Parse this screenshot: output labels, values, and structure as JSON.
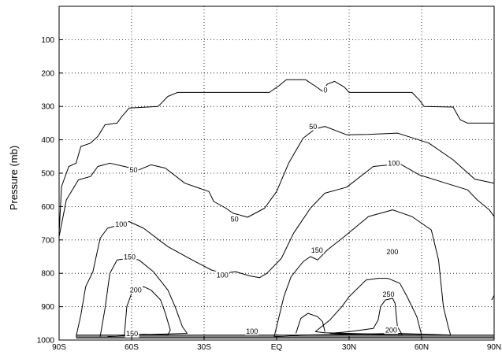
{
  "chart_data": {
    "type": "contour",
    "title": "",
    "xlabel": "",
    "ylabel": "Pressure (mb)",
    "x_axis": {
      "range": [
        -90,
        90
      ],
      "ticks": [
        -90,
        -60,
        -30,
        0,
        30,
        60,
        90
      ],
      "tick_labels": [
        "90S",
        "60S",
        "30S",
        "EQ",
        "30N",
        "60N",
        "90N"
      ]
    },
    "y_axis": {
      "range": [
        0,
        1000
      ],
      "inverted": true,
      "ticks": [
        100,
        200,
        300,
        400,
        500,
        600,
        700,
        800,
        900,
        1000
      ],
      "tick_labels": [
        "100",
        "200",
        "300",
        "400",
        "500",
        "600",
        "700",
        "800",
        "900",
        "1000"
      ]
    },
    "grid": "dotted",
    "contour_levels": [
      0,
      50,
      100,
      150,
      200,
      250
    ],
    "contours": [
      {
        "level": 0,
        "points": [
          [
            -90,
            680
          ],
          [
            -89,
            540
          ],
          [
            -86,
            480
          ],
          [
            -83,
            470
          ],
          [
            -81,
            420
          ],
          [
            -77,
            410
          ],
          [
            -74,
            390
          ],
          [
            -71,
            355
          ],
          [
            -66,
            350
          ],
          [
            -64,
            330
          ],
          [
            -61,
            305
          ],
          [
            -49,
            300
          ],
          [
            -45,
            270
          ],
          [
            -41,
            258
          ],
          [
            -3,
            258
          ],
          [
            1,
            238
          ],
          [
            4,
            220
          ],
          [
            12,
            220
          ],
          [
            17,
            244
          ],
          [
            19,
            255
          ],
          [
            21,
            233
          ],
          [
            24,
            225
          ],
          [
            28,
            242
          ],
          [
            30,
            258
          ],
          [
            56,
            258
          ],
          [
            59,
            280
          ],
          [
            61,
            300
          ],
          [
            73,
            302
          ],
          [
            76,
            340
          ],
          [
            79,
            350
          ],
          [
            90,
            350
          ]
        ]
      },
      {
        "level": 50,
        "points": [
          [
            -90,
            690
          ],
          [
            -87,
            580
          ],
          [
            -82,
            520
          ],
          [
            -77,
            510
          ],
          [
            -74,
            480
          ],
          [
            -69,
            470
          ],
          [
            -63,
            480
          ],
          [
            -57,
            490
          ],
          [
            -52,
            475
          ],
          [
            -46,
            485
          ],
          [
            -38,
            530
          ],
          [
            -32,
            545
          ],
          [
            -28,
            555
          ],
          [
            -26,
            585
          ],
          [
            -21,
            605
          ],
          [
            -18,
            620
          ],
          [
            -12,
            632
          ],
          [
            -5,
            605
          ],
          [
            0,
            555
          ],
          [
            5,
            470
          ],
          [
            11,
            395
          ],
          [
            16,
            367
          ],
          [
            20,
            360
          ],
          [
            29,
            385
          ],
          [
            38,
            384
          ],
          [
            50,
            380
          ],
          [
            63,
            410
          ],
          [
            73,
            460
          ],
          [
            82,
            518
          ],
          [
            90,
            530
          ]
        ]
      },
      {
        "level": 100,
        "points": [
          [
            -83,
            990
          ],
          [
            -81,
            925
          ],
          [
            -79,
            840
          ],
          [
            -76,
            795
          ],
          [
            -73,
            695
          ],
          [
            -70,
            665
          ],
          [
            -65,
            655
          ],
          [
            -61,
            645
          ],
          [
            -55,
            665
          ],
          [
            -45,
            720
          ],
          [
            -35,
            760
          ],
          [
            -27,
            790
          ],
          [
            -22,
            800
          ],
          [
            -17,
            795
          ],
          [
            -11,
            808
          ],
          [
            -7,
            813
          ],
          [
            -4,
            800
          ],
          [
            2,
            755
          ],
          [
            7,
            680
          ],
          [
            14,
            605
          ],
          [
            20,
            560
          ],
          [
            29,
            542
          ],
          [
            40,
            480
          ],
          [
            51,
            472
          ],
          [
            59,
            505
          ],
          [
            70,
            530
          ],
          [
            79,
            550
          ],
          [
            83,
            580
          ],
          [
            88,
            610
          ],
          [
            90,
            630
          ]
        ]
      },
      {
        "level": 150,
        "points": [
          [
            -73,
            990
          ],
          [
            -71,
            905
          ],
          [
            -69,
            800
          ],
          [
            -66,
            760
          ],
          [
            -61,
            755
          ],
          [
            -57,
            760
          ],
          [
            -51,
            795
          ],
          [
            -45,
            850
          ],
          [
            -42,
            900
          ],
          [
            -39,
            960
          ],
          [
            -37,
            980
          ],
          [
            -60,
            985
          ],
          [
            -70,
            990
          ]
        ]
      },
      {
        "level": 150,
        "points": [
          [
            -1,
            990
          ],
          [
            1,
            930
          ],
          [
            3,
            870
          ],
          [
            6,
            810
          ],
          [
            11,
            765
          ],
          [
            14,
            750
          ],
          [
            17,
            760
          ],
          [
            21,
            730
          ],
          [
            28,
            690
          ],
          [
            38,
            630
          ],
          [
            48,
            610
          ],
          [
            56,
            630
          ],
          [
            64,
            670
          ],
          [
            67,
            760
          ],
          [
            69,
            900
          ],
          [
            71,
            960
          ],
          [
            72,
            985
          ],
          [
            50,
            980
          ],
          [
            30,
            983
          ],
          [
            10,
            985
          ],
          [
            -1,
            990
          ]
        ]
      },
      {
        "level": 200,
        "points": [
          [
            -63,
            985
          ],
          [
            -62,
            900
          ],
          [
            -60,
            860
          ],
          [
            -55,
            840
          ],
          [
            -52,
            850
          ],
          [
            -48,
            880
          ],
          [
            -46,
            920
          ],
          [
            -44,
            970
          ],
          [
            -45,
            985
          ],
          [
            -55,
            983
          ],
          [
            -63,
            985
          ]
        ]
      },
      {
        "level": 200,
        "points": [
          [
            16,
            975
          ],
          [
            22,
            940
          ],
          [
            27,
            900
          ],
          [
            30,
            870
          ],
          [
            37,
            820
          ],
          [
            42,
            815
          ],
          [
            46,
            815
          ],
          [
            51,
            830
          ],
          [
            54,
            870
          ],
          [
            58,
            930
          ],
          [
            60,
            985
          ],
          [
            40,
            982
          ],
          [
            20,
            978
          ],
          [
            16,
            975
          ]
        ]
      },
      {
        "level": 250,
        "points": [
          [
            22,
            980
          ],
          [
            30,
            975
          ],
          [
            40,
            965
          ],
          [
            42,
            940
          ],
          [
            43,
            900
          ],
          [
            45,
            880
          ],
          [
            48,
            875
          ],
          [
            49,
            890
          ],
          [
            50,
            960
          ],
          [
            52,
            985
          ],
          [
            40,
            983
          ],
          [
            30,
            982
          ],
          [
            22,
            980
          ]
        ]
      },
      {
        "level": 200,
        "points": [
          [
            8,
            980
          ],
          [
            10,
            935
          ],
          [
            13,
            920
          ],
          [
            17,
            930
          ],
          [
            19,
            945
          ],
          [
            20,
            975
          ]
        ]
      },
      {
        "level": 200,
        "points": [
          [
            89,
            880
          ],
          [
            90,
            866
          ]
        ]
      }
    ],
    "labels": [
      {
        "text": "0",
        "x": 20.2,
        "y": 250
      },
      {
        "text": "50",
        "x": -59.2,
        "y": 490
      },
      {
        "text": "50",
        "x": -17.4,
        "y": 637
      },
      {
        "text": "50",
        "x": 15.1,
        "y": 360
      },
      {
        "text": "100",
        "x": -64.3,
        "y": 653
      },
      {
        "text": "100",
        "x": -22.4,
        "y": 805
      },
      {
        "text": "100",
        "x": 48.5,
        "y": 470
      },
      {
        "text": "100",
        "x": -10.2,
        "y": 973
      },
      {
        "text": "150",
        "x": -60.8,
        "y": 750
      },
      {
        "text": "150",
        "x": 16.7,
        "y": 730
      },
      {
        "text": "150",
        "x": -59.8,
        "y": 980
      },
      {
        "text": "200",
        "x": -58.3,
        "y": 850
      },
      {
        "text": "200",
        "x": 47.9,
        "y": 735
      },
      {
        "text": "200",
        "x": 47.4,
        "y": 970
      },
      {
        "text": "250",
        "x": 46.3,
        "y": 862
      }
    ]
  }
}
